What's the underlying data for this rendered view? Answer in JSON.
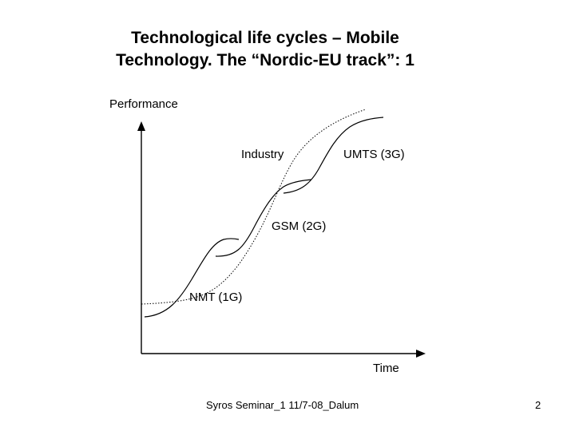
{
  "title": {
    "line1": "Technological life cycles – Mobile",
    "line2": "Technology. The “Nordic-EU track”: 1"
  },
  "axes": {
    "y_label": "Performance",
    "x_label": "Time"
  },
  "curves": {
    "industry": "Industry",
    "nmt": "NMT (1G)",
    "gsm": "GSM (2G)",
    "umts": "UMTS (3G)"
  },
  "footer": {
    "text": "Syros Seminar_1 11/7-08_Dalum",
    "page_number": "2"
  }
}
